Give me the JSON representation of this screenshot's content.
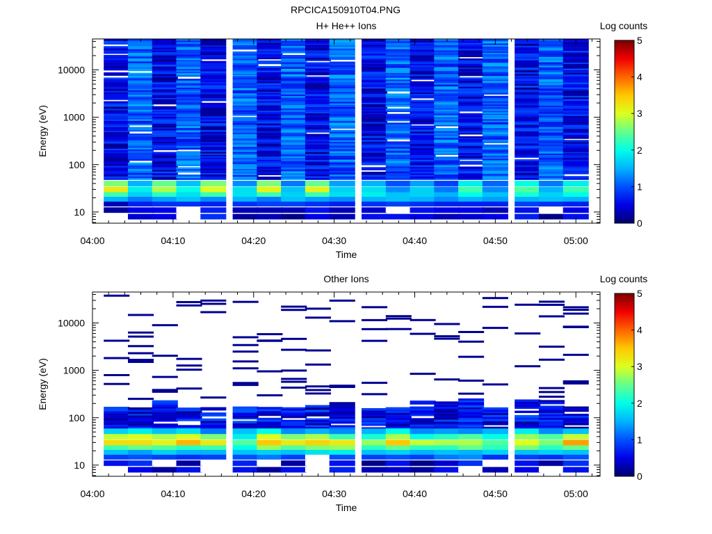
{
  "figure": {
    "title": "RPCICA150910T04.PNG"
  },
  "chart_data": [
    {
      "type": "heatmap",
      "title": "H+ He++ Ions",
      "xlabel": "Time",
      "ylabel": "Energy (eV)",
      "x_ticks": [
        "04:00",
        "04:10",
        "04:20",
        "04:30",
        "04:40",
        "04:50",
        "05:00"
      ],
      "xlim": [
        "04:00",
        "05:03"
      ],
      "y_ticks": [
        {
          "value": 10,
          "label": "10"
        },
        {
          "value": 100,
          "label": "100"
        },
        {
          "value": 1000,
          "label": "1000"
        },
        {
          "value": 10000,
          "label": "10000"
        }
      ],
      "ylim": [
        5.8,
        45000
      ],
      "y_scale": "log",
      "colorbar": {
        "label": "Log counts",
        "range": [
          0,
          5
        ],
        "ticks": [
          "0",
          "1",
          "2",
          "3",
          "4",
          "5"
        ],
        "colormap": "rainbow"
      },
      "time_bins": [
        "04:03",
        "04:06",
        "04:09",
        "04:12",
        "04:15",
        "04:19",
        "04:22",
        "04:25",
        "04:28",
        "04:31",
        "04:35",
        "04:38",
        "04:41",
        "04:44",
        "04:47",
        "04:50",
        "04:54",
        "04:57",
        "05:00"
      ],
      "energy_bands": [
        {
          "energy": 8,
          "values": [
            null,
            0.4,
            0.5,
            null,
            0.8,
            0.2,
            0.3,
            0.1,
            0.5,
            0.3,
            0.6,
            0.6,
            0.5,
            0.3,
            0.4,
            0.5,
            0.7,
            0.1,
            0.6
          ]
        },
        {
          "energy": 11,
          "values": [
            0.2,
            0.5,
            0.5,
            null,
            0.7,
            0.3,
            0.3,
            0.3,
            0.6,
            0.3,
            0.4,
            null,
            0.6,
            0.5,
            0.5,
            0.3,
            0.6,
            null,
            0.5
          ]
        },
        {
          "energy": 15,
          "values": [
            0.3,
            0.7,
            0.8,
            0.8,
            0.7,
            0.8,
            0.9,
            0.9,
            0.8,
            0.7,
            0.8,
            0.9,
            0.8,
            0.7,
            0.7,
            0.7,
            0.9,
            0.8,
            0.7
          ]
        },
        {
          "energy": 19,
          "values": [
            1.5,
            1.2,
            1.4,
            1.6,
            1.3,
            1.5,
            1.2,
            1.6,
            1.4,
            1.3,
            1.5,
            1.6,
            1.5,
            1.3,
            1.5,
            1.4,
            1.5,
            1.6,
            1.5
          ]
        },
        {
          "energy": 24,
          "values": [
            2.3,
            1.7,
            2.2,
            1.8,
            2.3,
            1.8,
            2.3,
            1.7,
            2.3,
            1.8,
            1.9,
            1.6,
            1.7,
            1.5,
            2.0,
            1.6,
            2.1,
            1.7,
            2.0
          ]
        },
        {
          "energy": 30,
          "values": [
            3.2,
            1.9,
            2.8,
            2.0,
            3.0,
            1.8,
            3.1,
            1.6,
            3.1,
            1.7,
            1.8,
            1.3,
            1.7,
            1.2,
            2.3,
            1.3,
            2.4,
            1.5,
            2.3
          ]
        },
        {
          "energy": 40,
          "values": [
            2.6,
            1.5,
            2.5,
            1.6,
            2.6,
            1.3,
            2.6,
            1.2,
            2.5,
            1.4,
            1.5,
            1.0,
            1.4,
            0.9,
            1.9,
            1.1,
            2.0,
            1.2,
            1.9
          ]
        }
      ],
      "background": "speckled blue 0.1–1.6 log counts from ~50 eV to 40000 eV, with scattered empty (white) bins"
    },
    {
      "type": "heatmap",
      "title": "Other Ions",
      "xlabel": "Time",
      "ylabel": "Energy (eV)",
      "x_ticks": [
        "04:00",
        "04:10",
        "04:20",
        "04:30",
        "04:40",
        "04:50",
        "05:00"
      ],
      "xlim": [
        "04:00",
        "05:03"
      ],
      "y_ticks": [
        {
          "value": 10,
          "label": "10"
        },
        {
          "value": 100,
          "label": "100"
        },
        {
          "value": 1000,
          "label": "1000"
        },
        {
          "value": 10000,
          "label": "10000"
        }
      ],
      "ylim": [
        5.8,
        45000
      ],
      "y_scale": "log",
      "colorbar": {
        "label": "Log counts",
        "range": [
          0,
          5
        ],
        "ticks": [
          "0",
          "1",
          "2",
          "3",
          "4",
          "5"
        ],
        "colormap": "rainbow"
      },
      "time_bins": [
        "04:03",
        "04:06",
        "04:09",
        "04:12",
        "04:15",
        "04:19",
        "04:22",
        "04:25",
        "04:28",
        "04:31",
        "04:35",
        "04:38",
        "04:41",
        "04:44",
        "04:47",
        "04:50",
        "04:54",
        "04:57",
        "05:00"
      ],
      "energy_bands": [
        {
          "energy": 8,
          "values": [
            null,
            0.5,
            0.2,
            0.6,
            null,
            0.6,
            0.2,
            0.6,
            null,
            0.7,
            0.3,
            0.4,
            0.2,
            0.6,
            null,
            0.3,
            0.5,
            null,
            0.6
          ]
        },
        {
          "energy": 11,
          "values": [
            0.6,
            0.8,
            null,
            0.2,
            null,
            0.7,
            null,
            0.2,
            null,
            0.6,
            0.1,
            0.6,
            0.1,
            0.4,
            0.8,
            null,
            0.6,
            0.2,
            0.8
          ]
        },
        {
          "energy": 15,
          "values": [
            0.9,
            1.0,
            0.9,
            0.8,
            0.9,
            1.0,
            1.2,
            0.9,
            null,
            1.0,
            0.9,
            1.0,
            0.9,
            1.2,
            1.3,
            0.8,
            0.9,
            0.8,
            1.0
          ]
        },
        {
          "energy": 19,
          "values": [
            1.6,
            1.4,
            1.7,
            1.5,
            1.5,
            1.6,
            1.7,
            1.6,
            1.8,
            1.9,
            1.6,
            1.7,
            1.5,
            1.6,
            1.5,
            1.7,
            1.6,
            1.7,
            1.6
          ]
        },
        {
          "energy": 24,
          "values": [
            2.3,
            2.5,
            2.4,
            2.2,
            2.3,
            2.0,
            2.7,
            2.4,
            2.6,
            2.7,
            2.2,
            2.5,
            2.2,
            2.2,
            2.5,
            2.2,
            2.6,
            2.2,
            2.5
          ]
        },
        {
          "energy": 30,
          "values": [
            3.3,
            3.3,
            3.1,
            3.6,
            3.2,
            2.4,
            3.5,
            3.2,
            3.4,
            3.2,
            2.7,
            3.5,
            2.9,
            2.8,
            2.8,
            2.4,
            3.0,
            2.6,
            3.7
          ]
        },
        {
          "energy": 40,
          "values": [
            2.9,
            3.0,
            2.8,
            3.0,
            2.6,
            1.9,
            3.0,
            2.6,
            2.8,
            2.3,
            2.1,
            2.8,
            2.0,
            2.2,
            2.4,
            2.0,
            2.7,
            2.4,
            2.9
          ]
        },
        {
          "energy": 52,
          "values": [
            1.7,
            1.9,
            1.6,
            1.8,
            1.2,
            1.6,
            2.0,
            1.3,
            1.5,
            1.3,
            1.5,
            2.0,
            1.3,
            1.4,
            1.3,
            1.5,
            1.9,
            1.3,
            1.6
          ]
        }
      ],
      "background": "dark blue 0.1–1.0 log counts between ~60 and 230 eV, plus sparse dark-blue lines up to 40000 eV; mostly empty (white) above 230 eV"
    }
  ]
}
